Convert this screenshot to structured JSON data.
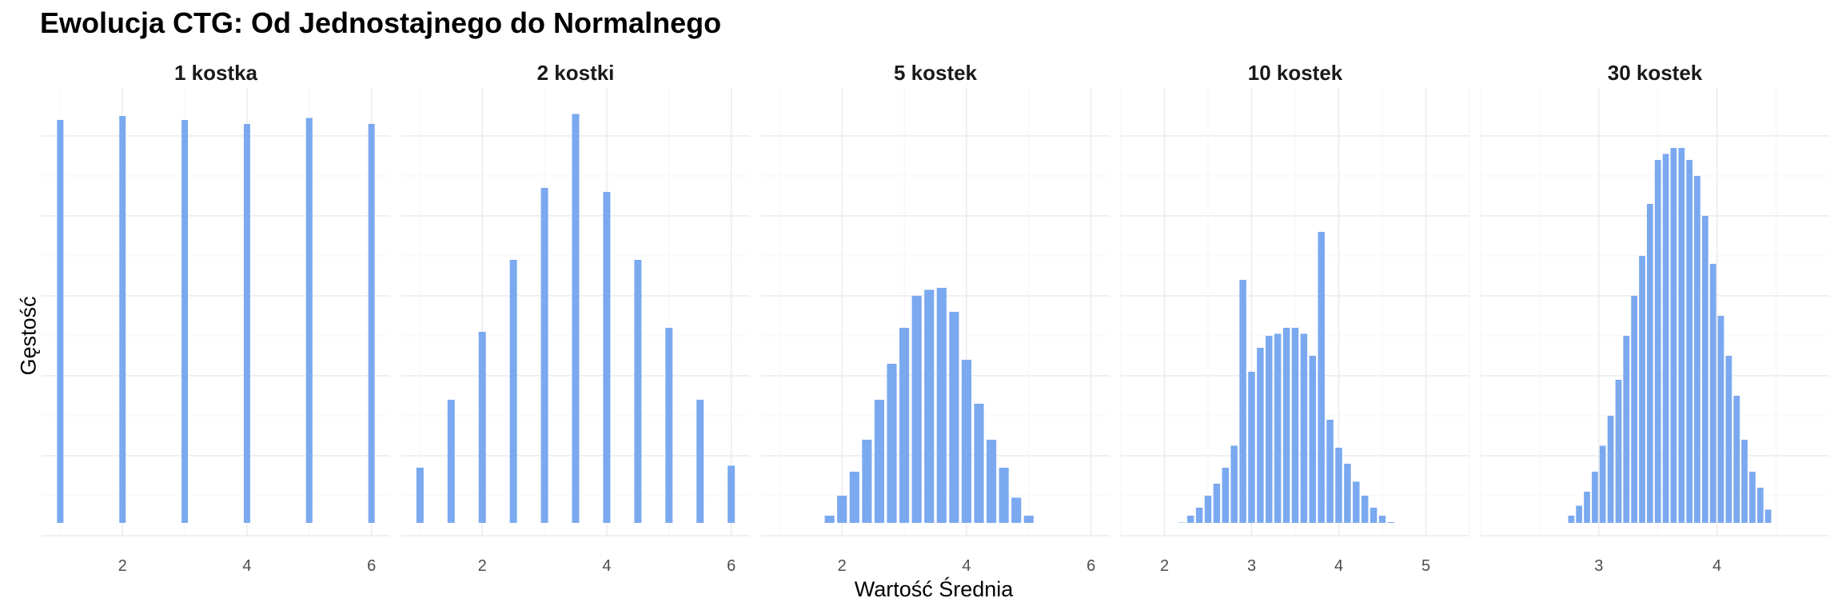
{
  "title": "Ewolucja CTG: Od Jednostajnego do Normalnego",
  "chart_data": {
    "type": "bar",
    "title": "Ewolucja CTG: Od Jednostajnego do Normalnego",
    "xlabel": "Wartość Średnia",
    "ylabel": "Gęstość",
    "grid": true,
    "bar_color": "#7aa9f0",
    "facets": [
      {
        "label": "1 kostka",
        "xlim": [
          0.7,
          6.3
        ],
        "xticks": [
          2,
          4,
          6
        ],
        "x": [
          1,
          2,
          3,
          4,
          5,
          6
        ],
        "y": [
          1.04,
          1.05,
          1.04,
          1.03,
          1.045,
          1.03
        ]
      },
      {
        "label": "2 kostki",
        "xlim": [
          0.7,
          6.3
        ],
        "xticks": [
          2,
          4,
          6
        ],
        "x": [
          1,
          1.5,
          2,
          2.5,
          3,
          3.5,
          4,
          4.5,
          5,
          5.5,
          6
        ],
        "y": [
          0.17,
          0.34,
          0.51,
          0.69,
          0.87,
          1.055,
          0.86,
          0.69,
          0.52,
          0.34,
          0.175
        ]
      },
      {
        "label": "5 kostek",
        "xlim": [
          0.7,
          6.3
        ],
        "xticks": [
          2,
          4,
          6
        ],
        "x": [
          1.4,
          1.6,
          1.8,
          2.0,
          2.2,
          2.4,
          2.6,
          2.8,
          3.0,
          3.2,
          3.4,
          3.6,
          3.8,
          4.0,
          4.2,
          4.4,
          4.6,
          4.8,
          5.0,
          5.2,
          5.4,
          5.6
        ],
        "y": [
          0.008,
          0.023,
          0.05,
          0.1,
          0.16,
          0.24,
          0.34,
          0.43,
          0.52,
          0.6,
          0.615,
          0.62,
          0.56,
          0.44,
          0.33,
          0.24,
          0.17,
          0.095,
          0.05,
          0.026,
          0.009,
          0.003
        ]
      },
      {
        "label": "10 kostek",
        "xlim": [
          1.5,
          5.5
        ],
        "xticks": [
          2,
          3,
          4,
          5
        ],
        "x": [
          1.8,
          1.9,
          2.0,
          2.1,
          2.2,
          2.3,
          2.4,
          2.5,
          2.6,
          2.7,
          2.8,
          2.9,
          3.0,
          3.1,
          3.2,
          3.3,
          3.4,
          3.5,
          3.6,
          3.7,
          3.8,
          3.9,
          4.0,
          4.1,
          4.2,
          4.3,
          4.4,
          4.5,
          4.6,
          4.7,
          4.8,
          4.9,
          5.0,
          5.1
        ],
        "y": [
          0.002,
          0.006,
          0.012,
          0.02,
          0.033,
          0.05,
          0.07,
          0.1,
          0.13,
          0.17,
          0.225,
          0.64,
          0.41,
          0.47,
          0.5,
          0.505,
          0.52,
          0.52,
          0.505,
          0.45,
          0.76,
          0.29,
          0.22,
          0.18,
          0.135,
          0.1,
          0.07,
          0.05,
          0.034,
          0.022,
          0.014,
          0.008,
          0.004,
          0.002
        ]
      },
      {
        "label": "30 kostek",
        "xlim": [
          2.0,
          4.95
        ],
        "xticks": [
          3,
          4
        ],
        "x": [
          2.5,
          2.567,
          2.633,
          2.7,
          2.767,
          2.833,
          2.9,
          2.967,
          3.033,
          3.1,
          3.167,
          3.233,
          3.3,
          3.367,
          3.433,
          3.5,
          3.567,
          3.633,
          3.7,
          3.767,
          3.833,
          3.9,
          3.967,
          4.033,
          4.1,
          4.167,
          4.233,
          4.3,
          4.367,
          4.433,
          4.5
        ],
        "y": [
          0.003,
          0.008,
          0.017,
          0.032,
          0.05,
          0.075,
          0.11,
          0.16,
          0.225,
          0.3,
          0.39,
          0.5,
          0.6,
          0.7,
          0.83,
          0.94,
          0.955,
          0.97,
          0.97,
          0.94,
          0.9,
          0.8,
          0.68,
          0.55,
          0.45,
          0.35,
          0.24,
          0.16,
          0.12,
          0.065,
          0.025
        ]
      }
    ]
  }
}
